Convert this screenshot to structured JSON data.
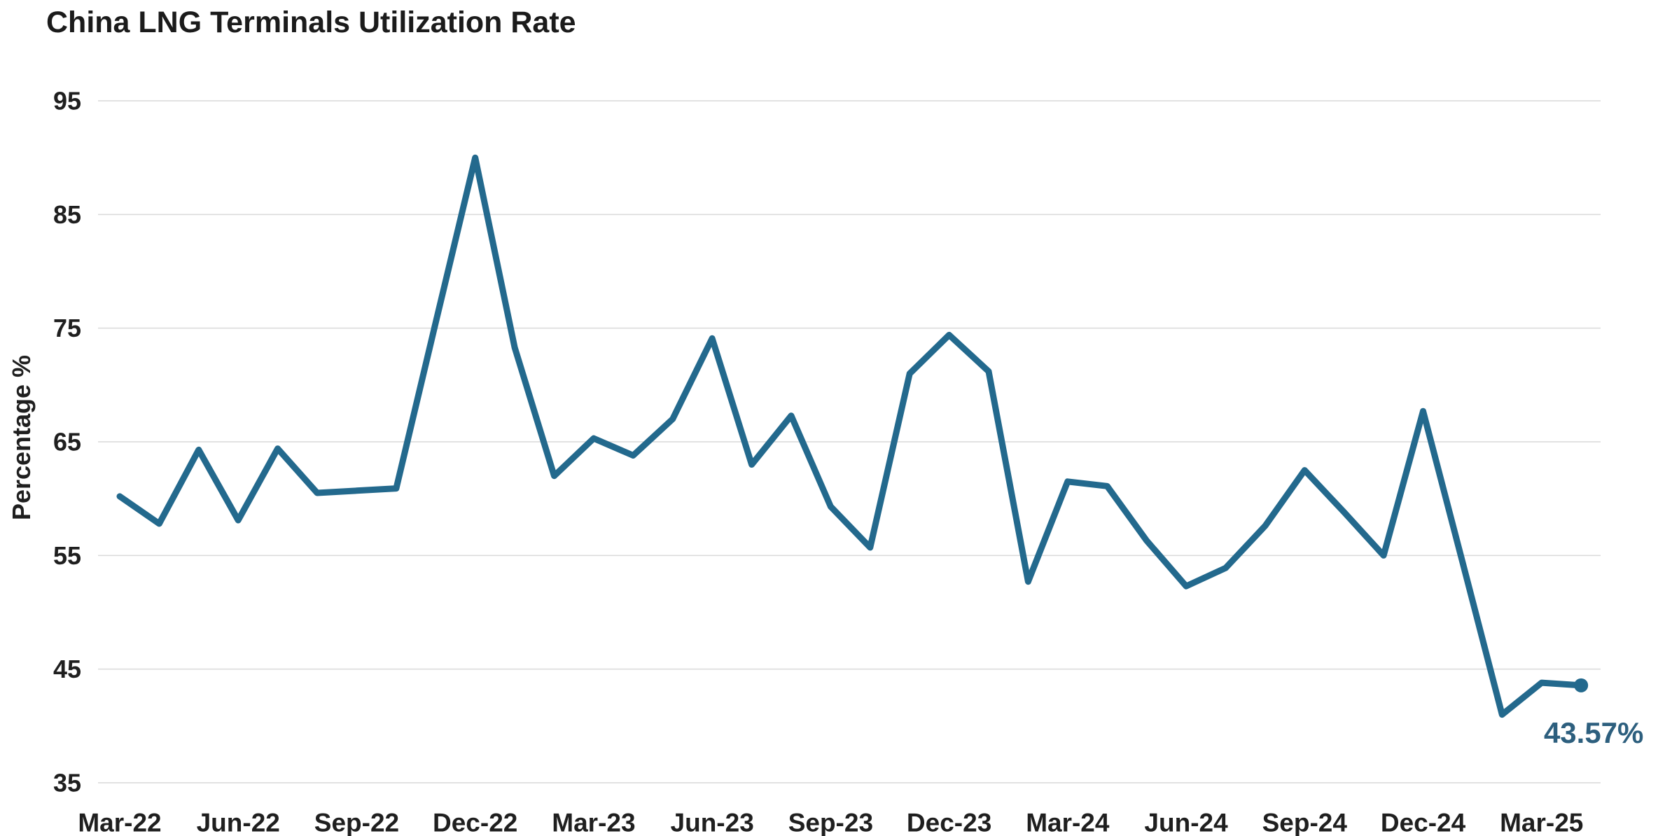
{
  "chart_data": {
    "type": "line",
    "title": "China LNG Terminals Utilization Rate",
    "ylabel": "Percentage %",
    "xlabel": "",
    "ylim": [
      35,
      95
    ],
    "yticks": [
      35,
      45,
      55,
      65,
      75,
      85,
      95
    ],
    "grid": "horizontal",
    "legend_position": "none",
    "x": [
      "Mar-22",
      "Apr-22",
      "May-22",
      "Jun-22",
      "Jul-22",
      "Aug-22",
      "Sep-22",
      "Oct-22",
      "Nov-22",
      "Dec-22",
      "Jan-23",
      "Feb-23",
      "Mar-23",
      "Apr-23",
      "May-23",
      "Jun-23",
      "Jul-23",
      "Aug-23",
      "Sep-23",
      "Oct-23",
      "Nov-23",
      "Dec-23",
      "Jan-24",
      "Feb-24",
      "Mar-24",
      "Apr-24",
      "May-24",
      "Jun-24",
      "Jul-24",
      "Aug-24",
      "Sep-24",
      "Oct-24",
      "Nov-24",
      "Dec-24",
      "Jan-25",
      "Feb-25",
      "Mar-25",
      "Apr-25"
    ],
    "values": [
      60.2,
      57.8,
      64.3,
      58.1,
      64.4,
      60.5,
      60.7,
      60.9,
      75.5,
      90.0,
      73.3,
      62.0,
      65.3,
      63.8,
      67.0,
      74.1,
      63.0,
      67.3,
      59.3,
      55.7,
      71.0,
      74.4,
      71.2,
      52.7,
      61.5,
      61.1,
      56.3,
      52.3,
      53.9,
      57.6,
      62.5,
      58.8,
      55.0,
      67.7,
      54.4,
      41.0,
      43.8,
      43.57
    ],
    "x_tick_labels": [
      "Mar-22",
      "Jun-22",
      "Sep-22",
      "Dec-22",
      "Mar-23",
      "Jun-23",
      "Sep-23",
      "Dec-23",
      "Mar-24",
      "Jun-24",
      "Sep-24",
      "Dec-24",
      "Mar-25"
    ],
    "x_tick_every": 3,
    "last_point_label": "43.57%",
    "colors": {
      "line": "#23698D",
      "marker": "#23698D",
      "point_label": "#2D5F7E",
      "grid": "#D9D9D9",
      "text": "#1F1F1F",
      "title": "#1B1B1B",
      "background": "#FFFFFF"
    }
  }
}
